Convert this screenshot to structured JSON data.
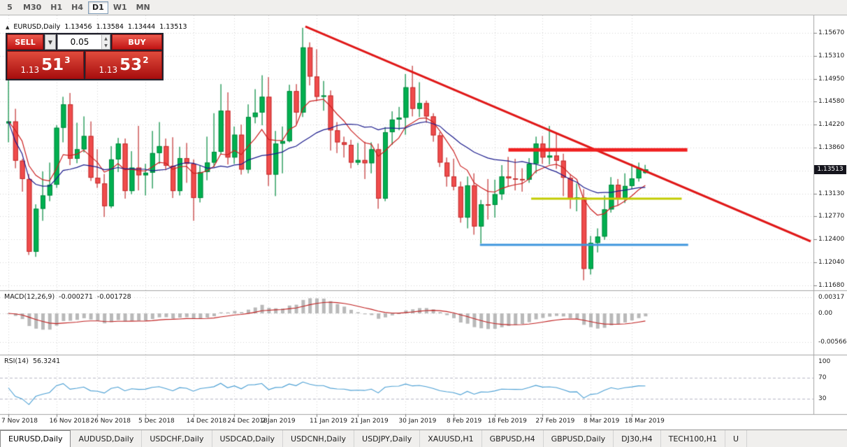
{
  "window_title": "EURUSD,Daily chart",
  "toolbar": {
    "timeframes": [
      {
        "label": "5",
        "active": false
      },
      {
        "label": "M30",
        "active": false
      },
      {
        "label": "H1",
        "active": false
      },
      {
        "label": "H4",
        "active": false
      },
      {
        "label": "D1",
        "active": true
      },
      {
        "label": "W1",
        "active": false
      },
      {
        "label": "MN",
        "active": false
      }
    ]
  },
  "chart_header": {
    "collapse_icon": "▲",
    "symbol": "EURUSD,Daily",
    "open": "1.13456",
    "high": "1.13584",
    "low": "1.13444",
    "close": "1.13513"
  },
  "trade_panel": {
    "sell_label": "SELL",
    "buy_label": "BUY",
    "lot_value": "0.05",
    "dropdown_icon": "▼",
    "stepper_up_icon": "▲",
    "stepper_down_icon": "▼",
    "bid": {
      "big": "1.13",
      "pips": "51",
      "frac": "3"
    },
    "ask": {
      "big": "1.13",
      "pips": "53",
      "frac": "2"
    }
  },
  "price_scale": {
    "labels": [
      "1.15670",
      "1.15310",
      "1.14950",
      "1.14580",
      "1.14220",
      "1.13860",
      "1.13130",
      "1.12770",
      "1.12400",
      "1.12040",
      "1.11680"
    ],
    "slots": [
      0,
      1,
      2,
      3,
      4,
      5,
      7,
      8,
      9,
      10,
      11
    ],
    "current": "1.13513"
  },
  "chart_data": {
    "type": "candlestick",
    "title": "EURUSD,Daily",
    "x_axis_labels": [
      {
        "i": 0,
        "label": "7 Nov 2018"
      },
      {
        "i": 7,
        "label": "16 Nov 2018"
      },
      {
        "i": 13,
        "label": "26 Nov 2018"
      },
      {
        "i": 20,
        "label": "5 Dec 2018"
      },
      {
        "i": 27,
        "label": "14 Dec 2018"
      },
      {
        "i": 33,
        "label": "24 Dec 2018"
      },
      {
        "i": 38,
        "label": "2 Jan 2019"
      },
      {
        "i": 45,
        "label": "11 Jan 2019"
      },
      {
        "i": 51,
        "label": "21 Jan 2019"
      },
      {
        "i": 58,
        "label": "30 Jan 2019"
      },
      {
        "i": 65,
        "label": "8 Feb 2019"
      },
      {
        "i": 71,
        "label": "18 Feb 2019"
      },
      {
        "i": 78,
        "label": "27 Feb 2019"
      },
      {
        "i": 85,
        "label": "8 Mar 2019"
      },
      {
        "i": 91,
        "label": "18 Mar 2019"
      }
    ],
    "candles": [
      [
        1.1424,
        1.15,
        1.1394,
        1.1427
      ],
      [
        1.1427,
        1.1447,
        1.1353,
        1.1365
      ],
      [
        1.1365,
        1.1368,
        1.1316,
        1.1336
      ],
      [
        1.1336,
        1.1344,
        1.1216,
        1.1221
      ],
      [
        1.1221,
        1.1296,
        1.1213,
        1.1289
      ],
      [
        1.1289,
        1.1348,
        1.127,
        1.131
      ],
      [
        1.131,
        1.1362,
        1.1301,
        1.1327
      ],
      [
        1.1327,
        1.1421,
        1.1322,
        1.1417
      ],
      [
        1.1417,
        1.1466,
        1.1394,
        1.1454
      ],
      [
        1.1454,
        1.1472,
        1.1358,
        1.1368
      ],
      [
        1.1368,
        1.1425,
        1.1361,
        1.1383
      ],
      [
        1.1383,
        1.1435,
        1.1378,
        1.1404
      ],
      [
        1.1404,
        1.1427,
        1.1333,
        1.1338
      ],
      [
        1.1338,
        1.1383,
        1.1322,
        1.1329
      ],
      [
        1.1329,
        1.1344,
        1.1276,
        1.1293
      ],
      [
        1.1293,
        1.1388,
        1.129,
        1.1367
      ],
      [
        1.1367,
        1.1401,
        1.1347,
        1.1392
      ],
      [
        1.1392,
        1.14,
        1.1305,
        1.1317
      ],
      [
        1.1317,
        1.138,
        1.1312,
        1.1354
      ],
      [
        1.1354,
        1.142,
        1.1318,
        1.1342
      ],
      [
        1.1342,
        1.136,
        1.131,
        1.1346
      ],
      [
        1.1346,
        1.1412,
        1.1321,
        1.1377
      ],
      [
        1.1377,
        1.1426,
        1.136,
        1.1388
      ],
      [
        1.1388,
        1.14,
        1.135,
        1.1357
      ],
      [
        1.1357,
        1.1402,
        1.1306,
        1.1317
      ],
      [
        1.1317,
        1.1387,
        1.131,
        1.1369
      ],
      [
        1.1369,
        1.1393,
        1.133,
        1.136
      ],
      [
        1.136,
        1.1367,
        1.127,
        1.1306
      ],
      [
        1.1306,
        1.1358,
        1.1299,
        1.1347
      ],
      [
        1.1347,
        1.1403,
        1.1334,
        1.1362
      ],
      [
        1.1362,
        1.144,
        1.1355,
        1.1379
      ],
      [
        1.1379,
        1.1486,
        1.1375,
        1.1444
      ],
      [
        1.1444,
        1.1473,
        1.1359,
        1.137
      ],
      [
        1.137,
        1.1419,
        1.136,
        1.1406
      ],
      [
        1.1406,
        1.1422,
        1.1343,
        1.1351
      ],
      [
        1.1351,
        1.1454,
        1.1345,
        1.1434
      ],
      [
        1.1434,
        1.1478,
        1.1424,
        1.1441
      ],
      [
        1.1441,
        1.15,
        1.1421,
        1.1466
      ],
      [
        1.1466,
        1.1497,
        1.1325,
        1.1343
      ],
      [
        1.1343,
        1.1412,
        1.1309,
        1.1392
      ],
      [
        1.1392,
        1.1419,
        1.1345,
        1.1396
      ],
      [
        1.1396,
        1.1485,
        1.1394,
        1.1475
      ],
      [
        1.1475,
        1.1486,
        1.1422,
        1.1441
      ],
      [
        1.1441,
        1.1575,
        1.1434,
        1.1544
      ],
      [
        1.1544,
        1.1552,
        1.1484,
        1.1498
      ],
      [
        1.1498,
        1.1541,
        1.1459,
        1.1466
      ],
      [
        1.1466,
        1.1491,
        1.1444,
        1.1468
      ],
      [
        1.1468,
        1.1476,
        1.1381,
        1.1413
      ],
      [
        1.1413,
        1.1426,
        1.1377,
        1.1394
      ],
      [
        1.1394,
        1.1403,
        1.137,
        1.139
      ],
      [
        1.139,
        1.1398,
        1.1353,
        1.1362
      ],
      [
        1.1362,
        1.1393,
        1.1358,
        1.1366
      ],
      [
        1.1366,
        1.1395,
        1.1336,
        1.1361
      ],
      [
        1.1361,
        1.1394,
        1.1345,
        1.1383
      ],
      [
        1.1383,
        1.1392,
        1.1289,
        1.1305
      ],
      [
        1.1305,
        1.1418,
        1.1301,
        1.141
      ],
      [
        1.141,
        1.1443,
        1.139,
        1.143
      ],
      [
        1.143,
        1.145,
        1.1413,
        1.1433
      ],
      [
        1.1433,
        1.1502,
        1.1406,
        1.1481
      ],
      [
        1.1481,
        1.1515,
        1.1435,
        1.1447
      ],
      [
        1.1447,
        1.1489,
        1.1434,
        1.1456
      ],
      [
        1.1456,
        1.146,
        1.1425,
        1.1435
      ],
      [
        1.1435,
        1.144,
        1.1395,
        1.1405
      ],
      [
        1.1405,
        1.141,
        1.1355,
        1.1362
      ],
      [
        1.1362,
        1.137,
        1.1324,
        1.134
      ],
      [
        1.134,
        1.1368,
        1.1318,
        1.1324
      ],
      [
        1.1324,
        1.1332,
        1.1267,
        1.1275
      ],
      [
        1.1275,
        1.134,
        1.1258,
        1.1326
      ],
      [
        1.1326,
        1.1345,
        1.1248,
        1.1261
      ],
      [
        1.1261,
        1.1303,
        1.1234,
        1.1296
      ],
      [
        1.1296,
        1.1336,
        1.1272,
        1.1295
      ],
      [
        1.1295,
        1.1335,
        1.1275,
        1.1312
      ],
      [
        1.1312,
        1.1358,
        1.1303,
        1.134
      ],
      [
        1.134,
        1.1371,
        1.1324,
        1.1337
      ],
      [
        1.1337,
        1.1368,
        1.1318,
        1.1336
      ],
      [
        1.1336,
        1.1353,
        1.1316,
        1.1335
      ],
      [
        1.1335,
        1.1369,
        1.133,
        1.136
      ],
      [
        1.136,
        1.1403,
        1.1345,
        1.1392
      ],
      [
        1.1392,
        1.1404,
        1.136,
        1.137
      ],
      [
        1.137,
        1.142,
        1.1359,
        1.1373
      ],
      [
        1.1373,
        1.1409,
        1.1352,
        1.1365
      ],
      [
        1.1365,
        1.1376,
        1.1309,
        1.1338
      ],
      [
        1.1338,
        1.1344,
        1.1289,
        1.1305
      ],
      [
        1.1305,
        1.1329,
        1.1285,
        1.1307
      ],
      [
        1.1307,
        1.132,
        1.1176,
        1.1194
      ],
      [
        1.1194,
        1.1246,
        1.1185,
        1.1235
      ],
      [
        1.1235,
        1.1258,
        1.122,
        1.1245
      ],
      [
        1.1245,
        1.131,
        1.124,
        1.1288
      ],
      [
        1.1288,
        1.1339,
        1.1283,
        1.1327
      ],
      [
        1.1327,
        1.1336,
        1.1294,
        1.1305
      ],
      [
        1.1305,
        1.1345,
        1.1298,
        1.1325
      ],
      [
        1.1325,
        1.136,
        1.132,
        1.1337
      ],
      [
        1.1337,
        1.1362,
        1.1332,
        1.1353
      ],
      [
        1.13456,
        1.13584,
        1.13444,
        1.13513
      ]
    ],
    "moving_averages": [
      {
        "name": "fast",
        "kind": "ema",
        "period": 8,
        "color": "#cc2020"
      },
      {
        "name": "slow",
        "kind": "sma",
        "period": 21,
        "color": "#1a1a8c"
      }
    ],
    "overlays": {
      "trendline": {
        "color": "#e01818",
        "width": 3,
        "x1_frac": 0.3754,
        "price1": 1.1577,
        "x2_frac": 0.9966,
        "price2": 1.12375
      },
      "resistance": {
        "color": "#f02020",
        "width": 5,
        "price": 1.1382,
        "x1_frac": 0.625,
        "x2_frac": 0.845
      },
      "mid_support": {
        "color": "#c3cc00",
        "width": 3,
        "price": 1.1305,
        "x1_frac": 0.653,
        "x2_frac": 0.838
      },
      "low_support": {
        "color": "#3e96dd",
        "width": 3,
        "price": 1.1232,
        "x1_frac": 0.59,
        "x2_frac": 0.846
      }
    },
    "indicators": {
      "macd": {
        "label": "MACD(12,26,9)",
        "main_value": "-0.000271",
        "signal_value": "-0.001728",
        "scale_labels": [
          "0.00317",
          "0.00",
          "-0.005667"
        ],
        "histogram_color": "#b9b9b9",
        "signal_color": "#c02020"
      },
      "rsi": {
        "label": "RSI(14)",
        "value": "56.3241",
        "scale_labels": [
          "100",
          "70",
          "30"
        ],
        "levels": [
          70,
          30
        ],
        "line_color": "#4a9fd4"
      }
    },
    "candle_colors": {
      "up": "#00b050",
      "up_border": "#008a3e",
      "down": "#f04c4c",
      "down_border": "#c22f2f"
    }
  },
  "tabbar": {
    "tabs": [
      {
        "label": "EURUSD,Daily",
        "active": true
      },
      {
        "label": "AUDUSD,Daily",
        "active": false
      },
      {
        "label": "USDCHF,Daily",
        "active": false
      },
      {
        "label": "USDCAD,Daily",
        "active": false
      },
      {
        "label": "USDCNH,Daily",
        "active": false
      },
      {
        "label": "USDJPY,Daily",
        "active": false
      },
      {
        "label": "XAUUSD,H1",
        "active": false
      },
      {
        "label": "GBPUSD,H4",
        "active": false
      },
      {
        "label": "GBPUSD,Daily",
        "active": false
      },
      {
        "label": "DJ30,H4",
        "active": false
      },
      {
        "label": "TECH100,H1",
        "active": false
      },
      {
        "label": "U",
        "active": false
      }
    ]
  }
}
